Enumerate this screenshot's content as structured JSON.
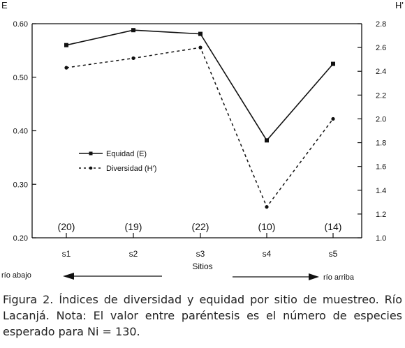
{
  "chart_data": {
    "type": "line",
    "categories": [
      "s1",
      "s2",
      "s3",
      "s4",
      "s5"
    ],
    "xlabel": "Sitios",
    "ylabel_left": "E",
    "ylabel_right": "H'",
    "ylim_left": [
      0.2,
      0.6
    ],
    "ylim_right": [
      1.0,
      2.8
    ],
    "left_ticks": [
      "0.20",
      "0.30",
      "0.40",
      "0.50",
      "0.60"
    ],
    "right_ticks": [
      "1.0",
      "1.2",
      "1.4",
      "1.6",
      "1.8",
      "2.0",
      "2.2",
      "2.4",
      "2.6",
      "2.8"
    ],
    "series": [
      {
        "name": "Equidad (E)",
        "axis": "left",
        "style": "solid-square",
        "values": [
          0.56,
          0.588,
          0.581,
          0.382,
          0.525
        ]
      },
      {
        "name": "Diversidad (H')",
        "axis": "right",
        "style": "dashed-dot",
        "values": [
          2.43,
          2.51,
          2.6,
          1.26,
          2.0
        ]
      }
    ],
    "expected_species": [
      "(20)",
      "(19)",
      "(22)",
      "(10)",
      "(14)"
    ],
    "direction_left": "río abajo",
    "direction_right": "río arriba",
    "legend_position": "center-left",
    "grid": false
  },
  "caption": "Figura 2. Índices de diversidad y equidad por sitio de muestreo. Río Lacanjá. Nota: El valor entre paréntesis es el número de especies esperado para Ni = 130."
}
